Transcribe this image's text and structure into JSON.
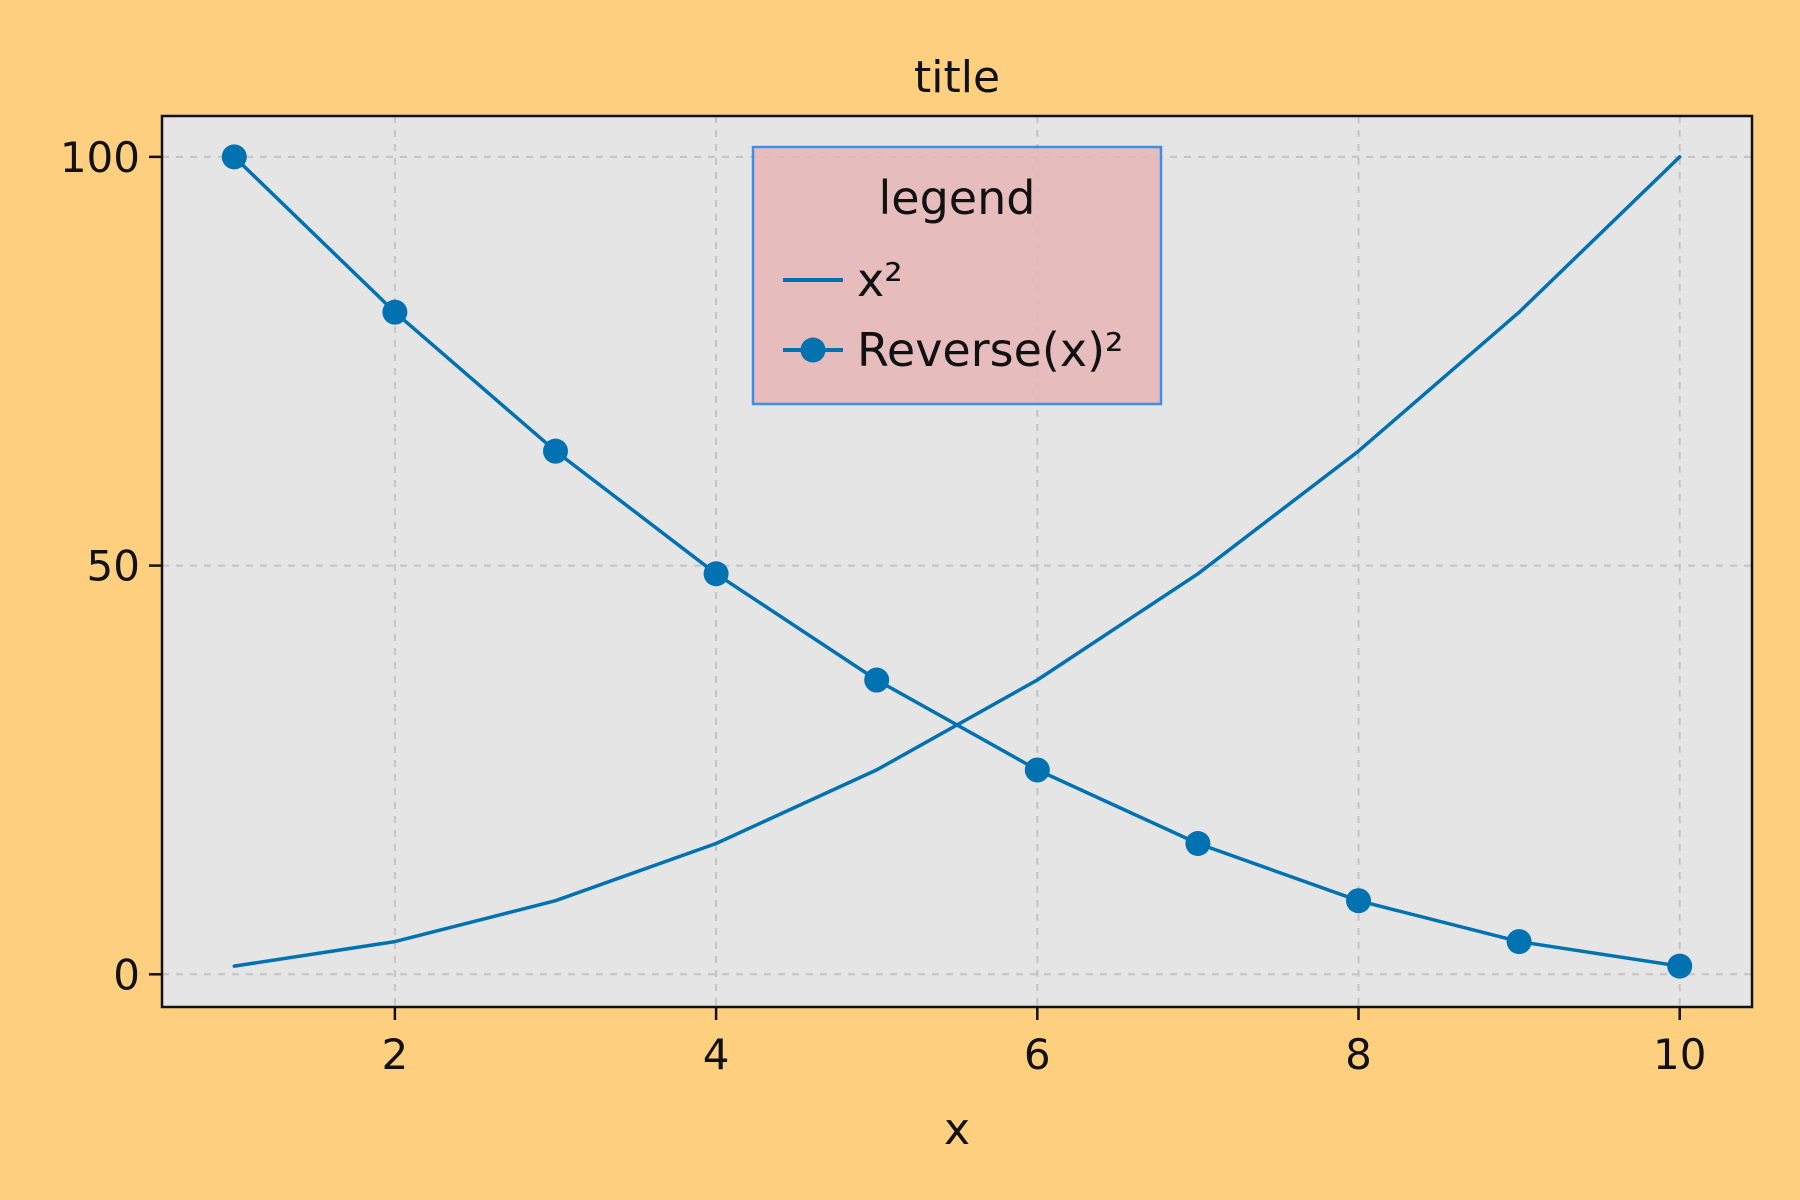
{
  "colors": {
    "figure_background": "#ffcf80",
    "plot_background": "#e5e5e5",
    "series": "#0072b2",
    "legend_background": "#e8b5b5",
    "legend_border": "#3d8fe8",
    "grid": "#c4c4c4",
    "text": "#111111"
  },
  "chart_data": {
    "type": "line",
    "title": "title",
    "xlabel": "x",
    "ylabel": "",
    "xlim": [
      0.55,
      10.45
    ],
    "ylim": [
      -4,
      105
    ],
    "xticks": [
      2,
      4,
      6,
      8,
      10
    ],
    "yticks": [
      0,
      50,
      100
    ],
    "grid": true,
    "legend": {
      "title": "legend",
      "position": "top-center"
    },
    "x": [
      1,
      2,
      3,
      4,
      5,
      6,
      7,
      8,
      9,
      10
    ],
    "series": [
      {
        "name": "x²",
        "values": [
          1,
          4,
          9,
          16,
          25,
          36,
          49,
          64,
          81,
          100
        ],
        "markers": false
      },
      {
        "name": "Reverse(x)²",
        "values": [
          100,
          81,
          64,
          49,
          36,
          25,
          16,
          9,
          4,
          1
        ],
        "markers": true
      }
    ]
  }
}
